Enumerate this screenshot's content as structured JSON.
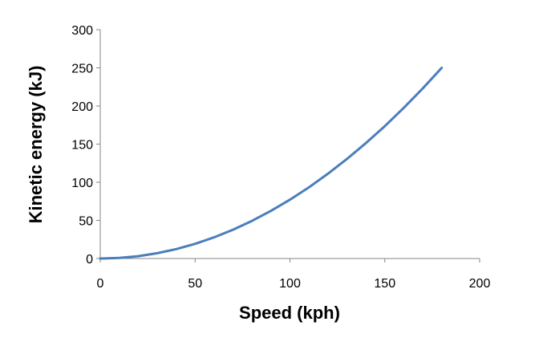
{
  "chart_data": {
    "type": "line",
    "title": "",
    "xlabel": "Speed (kph)",
    "ylabel": "Kinetic energy (kJ)",
    "xlim": [
      0,
      200
    ],
    "ylim": [
      0,
      300
    ],
    "xticks": [
      0,
      50,
      100,
      150,
      200
    ],
    "yticks": [
      0,
      50,
      100,
      150,
      200,
      250,
      300
    ],
    "grid": false,
    "legend": "none",
    "series": [
      {
        "color": "#4a7ebb",
        "x": [
          0,
          10,
          20,
          30,
          40,
          50,
          60,
          70,
          80,
          90,
          100,
          110,
          120,
          130,
          140,
          150,
          160,
          170,
          180
        ],
        "y": [
          0,
          0.77,
          3.09,
          6.94,
          12.35,
          19.29,
          27.78,
          37.81,
          49.38,
          62.5,
          77.16,
          93.36,
          111.11,
          130.4,
          151.23,
          173.61,
          197.53,
          222.99,
          250
        ]
      }
    ]
  }
}
